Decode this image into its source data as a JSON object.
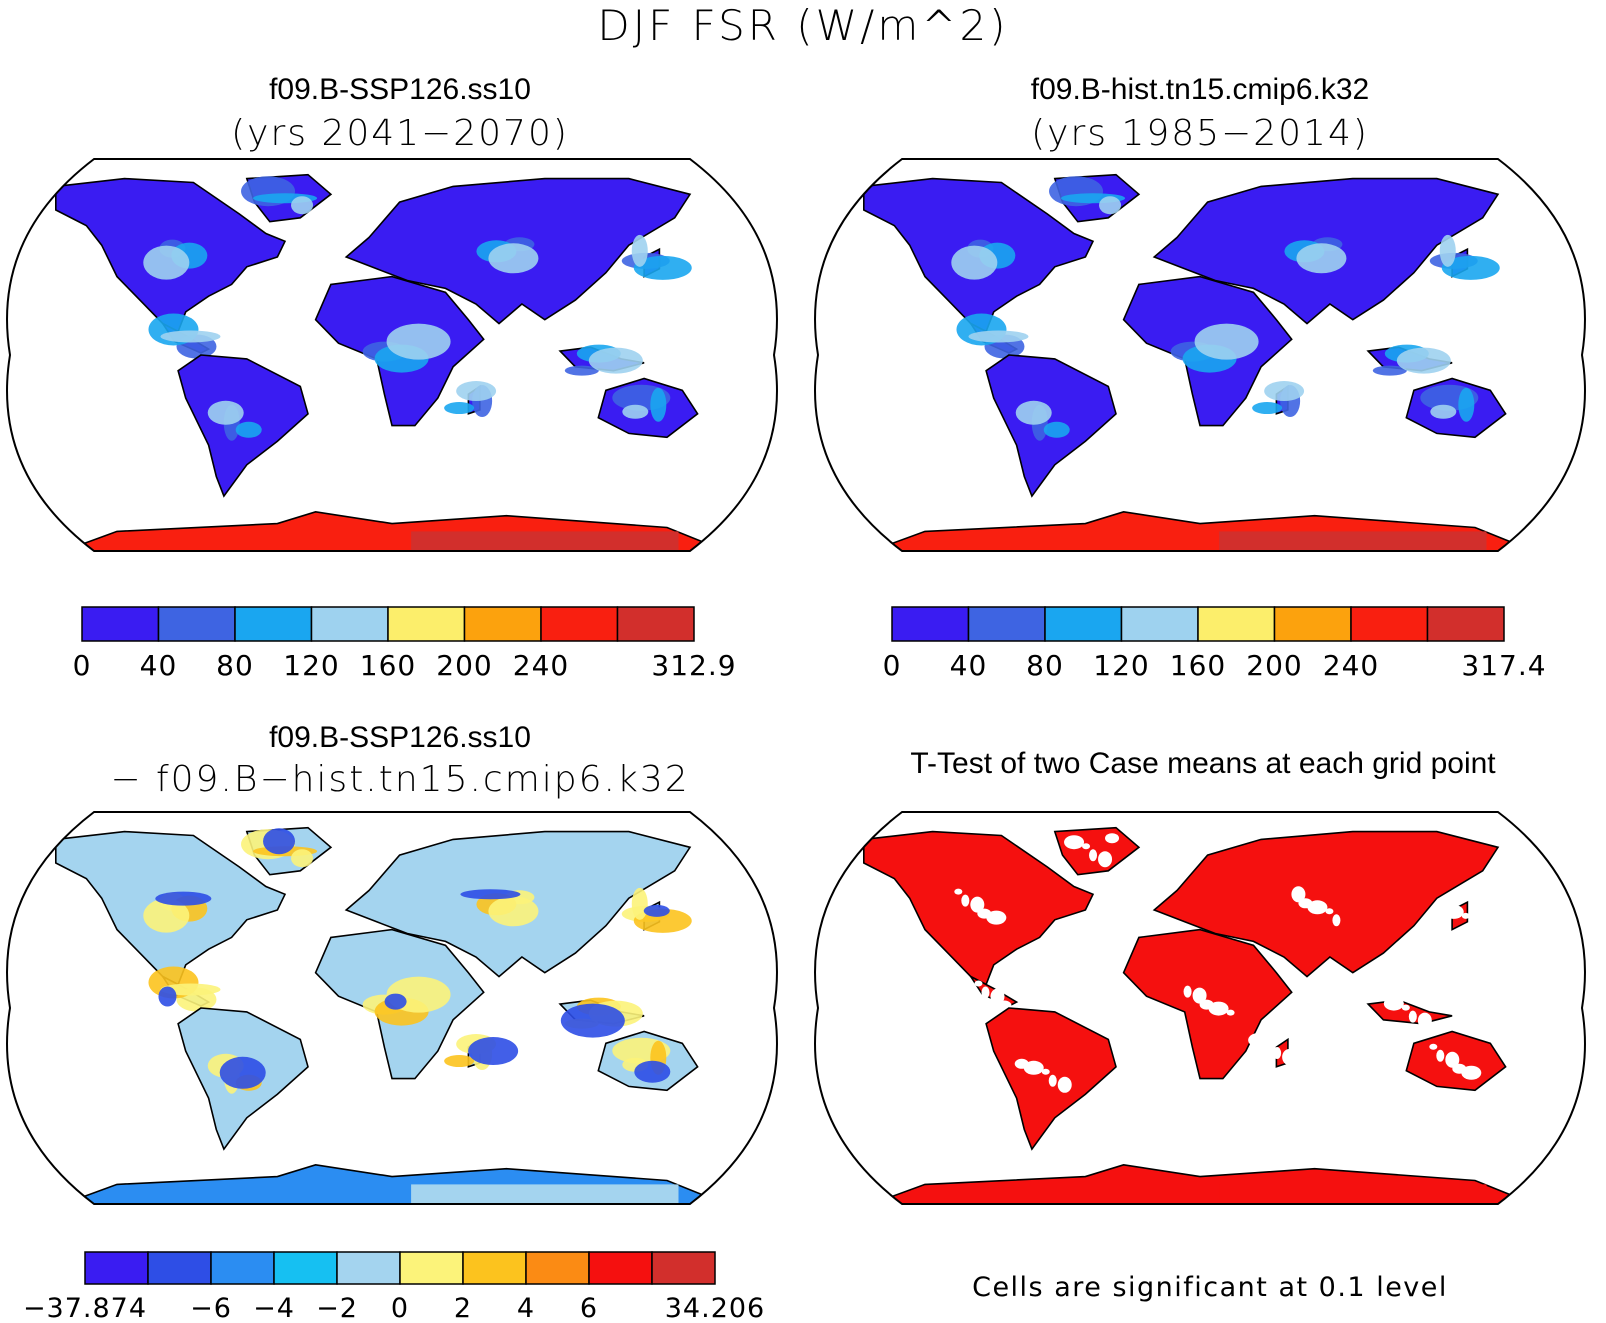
{
  "title": "DJF FSR (W/m^2)",
  "panels": [
    {
      "id": "case1",
      "title": "f09.B-SSP126.ss10",
      "subtitle": "(yrs 2041−2070)",
      "colorbar": {
        "colors": [
          "#3a1cf2",
          "#3e64e2",
          "#1aa6f0",
          "#9ed2ef",
          "#fcee6b",
          "#fca20d",
          "#f91f10",
          "#d22f2c"
        ],
        "labels": [
          "0",
          "40",
          "80",
          "120",
          "160",
          "200",
          "240",
          "312.9"
        ],
        "label_positions": [
          0,
          1,
          2,
          3,
          4,
          5,
          6,
          8
        ]
      },
      "land_palette": [
        "#3a1cf2",
        "#3e64e2",
        "#1aa6f0",
        "#9ed2ef"
      ],
      "polar_colors": [
        "#f91f10",
        "#d22f2c"
      ]
    },
    {
      "id": "case2",
      "title": "f09.B-hist.tn15.cmip6.k32",
      "subtitle": "(yrs 1985−2014)",
      "colorbar": {
        "colors": [
          "#3a1cf2",
          "#3e64e2",
          "#1aa6f0",
          "#9ed2ef",
          "#fcee6b",
          "#fca20d",
          "#f91f10",
          "#d22f2c"
        ],
        "labels": [
          "0",
          "40",
          "80",
          "120",
          "160",
          "200",
          "240",
          "317.4"
        ],
        "label_positions": [
          0,
          1,
          2,
          3,
          4,
          5,
          6,
          8
        ]
      },
      "land_palette": [
        "#3a1cf2",
        "#3e64e2",
        "#1aa6f0",
        "#9ed2ef"
      ],
      "polar_colors": [
        "#f91f10",
        "#d22f2c"
      ]
    },
    {
      "id": "diff",
      "title": "f09.B-SSP126.ss10",
      "subtitle": "− f09.B−hist.tn15.cmip6.k32",
      "colorbar": {
        "colors": [
          "#3a1cf2",
          "#2e4ee6",
          "#2b8df2",
          "#16c0f2",
          "#a4d4ef",
          "#fcf37a",
          "#fcc31e",
          "#fb8b14",
          "#f5100f",
          "#d22f2c"
        ],
        "labels": [
          "−37.874",
          "−6",
          "−4",
          "−2",
          "0",
          "2",
          "4",
          "6",
          "34.206"
        ],
        "label_positions": [
          0,
          2,
          3,
          4,
          5,
          6,
          7,
          8,
          10
        ]
      },
      "land_palette": [
        "#a4d4ef",
        "#fcf37a",
        "#fcc31e",
        "#fcf37a",
        "#2e4ee6"
      ],
      "polar_colors": [
        "#2b8df2",
        "#a4d4ef"
      ]
    },
    {
      "id": "ttest",
      "title": "T-Test of two Case means at each grid point",
      "note": "Cells are significant at 0.1 level",
      "land_palette": [
        "#f5100f"
      ],
      "polar_colors": [
        "#f5100f",
        "#f5100f"
      ]
    }
  ]
}
